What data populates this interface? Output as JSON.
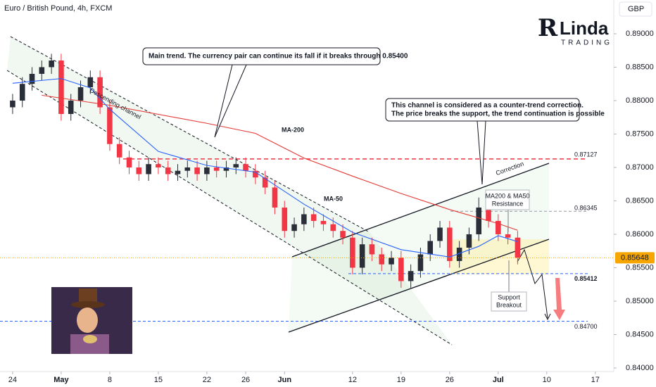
{
  "chart_data": {
    "type": "candlestick",
    "title": "Euro / British Pound, 4h, FXCM",
    "currency": "GBP",
    "logo": {
      "mark": "R",
      "name": "Linda",
      "tagline": "TRADING"
    },
    "xlim": [
      -1.3,
      61.9
    ],
    "ylim": [
      0.83947,
      0.89505
    ],
    "xticks": [
      {
        "value": 0,
        "label": "24"
      },
      {
        "value": 5,
        "label": "May"
      },
      {
        "value": 10,
        "label": "8"
      },
      {
        "value": 15,
        "label": "15"
      },
      {
        "value": 20,
        "label": "22"
      },
      {
        "value": 24,
        "label": "26"
      },
      {
        "value": 28,
        "label": "Jun"
      },
      {
        "value": 35,
        "label": "12"
      },
      {
        "value": 40,
        "label": "19"
      },
      {
        "value": 45,
        "label": "26"
      },
      {
        "value": 50,
        "label": "Jul"
      },
      {
        "value": 55,
        "label": "10"
      },
      {
        "value": 60,
        "label": "17"
      }
    ],
    "yticks": [
      {
        "value": 0.84,
        "label": "0.84000"
      },
      {
        "value": 0.845,
        "label": "0.84500"
      },
      {
        "value": 0.85,
        "label": "0.85000"
      },
      {
        "value": 0.855,
        "label": "0.85500"
      },
      {
        "value": 0.86,
        "label": "0.86000"
      },
      {
        "value": 0.865,
        "label": "0.86500"
      },
      {
        "value": 0.87,
        "label": "0.87000"
      },
      {
        "value": 0.875,
        "label": "0.87500"
      },
      {
        "value": 0.88,
        "label": "0.88000"
      },
      {
        "value": 0.885,
        "label": "0.88500"
      },
      {
        "value": 0.89,
        "label": "0.89000"
      }
    ],
    "up_color": "#2a2e39",
    "down_color": "#f23645",
    "x": [
      0,
      1,
      2,
      3,
      4,
      5,
      6,
      7,
      8,
      9,
      10,
      11,
      12,
      13,
      14,
      15,
      16,
      17,
      18,
      19,
      20,
      21,
      22,
      23,
      24,
      25,
      26,
      27,
      28,
      29,
      30,
      31,
      32,
      33,
      34,
      35,
      36,
      37,
      38,
      39,
      40,
      41,
      42,
      43,
      44,
      45,
      46,
      47,
      48,
      49,
      50,
      51,
      52
    ],
    "open": [
      0.879,
      0.88,
      0.8825,
      0.884,
      0.885,
      0.886,
      0.878,
      0.88,
      0.882,
      0.8835,
      0.879,
      0.8735,
      0.8715,
      0.87,
      0.869,
      0.8705,
      0.87,
      0.869,
      0.8695,
      0.87,
      0.869,
      0.87,
      0.8695,
      0.87,
      0.8705,
      0.8695,
      0.8685,
      0.867,
      0.864,
      0.8605,
      0.8615,
      0.863,
      0.862,
      0.8615,
      0.8605,
      0.8595,
      0.855,
      0.8585,
      0.857,
      0.8555,
      0.8565,
      0.853,
      0.8545,
      0.857,
      0.859,
      0.861,
      0.856,
      0.858,
      0.86,
      0.864,
      0.862,
      0.86,
      0.8595
    ],
    "high": [
      0.881,
      0.8835,
      0.885,
      0.886,
      0.887,
      0.887,
      0.881,
      0.883,
      0.8845,
      0.8845,
      0.88,
      0.8745,
      0.8725,
      0.871,
      0.8715,
      0.8715,
      0.871,
      0.8705,
      0.871,
      0.871,
      0.871,
      0.871,
      0.871,
      0.8715,
      0.8715,
      0.8705,
      0.8695,
      0.868,
      0.865,
      0.8625,
      0.864,
      0.864,
      0.863,
      0.8625,
      0.8615,
      0.8605,
      0.8595,
      0.8595,
      0.858,
      0.8575,
      0.8575,
      0.8555,
      0.858,
      0.86,
      0.862,
      0.862,
      0.859,
      0.861,
      0.8655,
      0.865,
      0.863,
      0.861,
      0.8605
    ],
    "low": [
      0.878,
      0.879,
      0.8815,
      0.883,
      0.884,
      0.877,
      0.877,
      0.879,
      0.881,
      0.878,
      0.8725,
      0.8705,
      0.869,
      0.868,
      0.868,
      0.869,
      0.868,
      0.868,
      0.8685,
      0.868,
      0.868,
      0.8685,
      0.8685,
      0.869,
      0.8685,
      0.8675,
      0.866,
      0.863,
      0.8595,
      0.8595,
      0.8605,
      0.861,
      0.8605,
      0.8595,
      0.8585,
      0.854,
      0.854,
      0.856,
      0.8545,
      0.8545,
      0.852,
      0.852,
      0.8535,
      0.856,
      0.858,
      0.855,
      0.855,
      0.857,
      0.859,
      0.861,
      0.859,
      0.8585,
      0.8555
    ],
    "close": [
      0.88,
      0.8825,
      0.884,
      0.885,
      0.886,
      0.878,
      0.88,
      0.882,
      0.8835,
      0.879,
      0.8735,
      0.8715,
      0.87,
      0.869,
      0.8705,
      0.87,
      0.869,
      0.8695,
      0.87,
      0.869,
      0.87,
      0.8695,
      0.87,
      0.8705,
      0.8695,
      0.8685,
      0.867,
      0.864,
      0.8605,
      0.8615,
      0.863,
      0.862,
      0.8615,
      0.8605,
      0.8595,
      0.855,
      0.8585,
      0.857,
      0.8555,
      0.8565,
      0.853,
      0.8545,
      0.857,
      0.859,
      0.861,
      0.856,
      0.858,
      0.86,
      0.864,
      0.862,
      0.86,
      0.8595,
      0.85648
    ],
    "series": [
      {
        "name": "MA-200",
        "color": "#e53935",
        "x": [
          3,
          10,
          20,
          25,
          30,
          35,
          40,
          45,
          50,
          52
        ],
        "values": [
          0.8808,
          0.8793,
          0.8766,
          0.8751,
          0.8714,
          0.8687,
          0.8661,
          0.8637,
          0.8616,
          0.8606
        ]
      },
      {
        "name": "MA-50",
        "color": "#2962ff",
        "x": [
          0,
          5,
          8,
          10,
          15,
          20,
          25,
          30,
          35,
          40,
          45,
          48,
          50,
          52
        ],
        "values": [
          0.8826,
          0.8833,
          0.8819,
          0.8787,
          0.8724,
          0.8703,
          0.8693,
          0.8645,
          0.8603,
          0.8577,
          0.8566,
          0.8582,
          0.8598,
          0.8589
        ]
      }
    ],
    "levels": [
      {
        "value": 0.87127,
        "color": "#f23645"
      },
      {
        "value": 0.86345,
        "color": "#9598a1"
      },
      {
        "value": 0.85412,
        "color": "#2962ff"
      },
      {
        "value": 0.847,
        "label": "0.84700",
        "color": "#2962ff"
      }
    ],
    "annotations": {
      "main_trend": "Main trend. The currency pair can continue its fall if it breaks through 0.85400",
      "counter_trend": [
        "This channel is considered as a counter-trend correction.",
        "The price breaks the support, the trend continuation is possible"
      ],
      "resistance": [
        "MA200 & MA50",
        "Resistance"
      ],
      "support": [
        "Support",
        "Breakout"
      ],
      "descending": "Descending channel",
      "correction": "Correction"
    }
  }
}
